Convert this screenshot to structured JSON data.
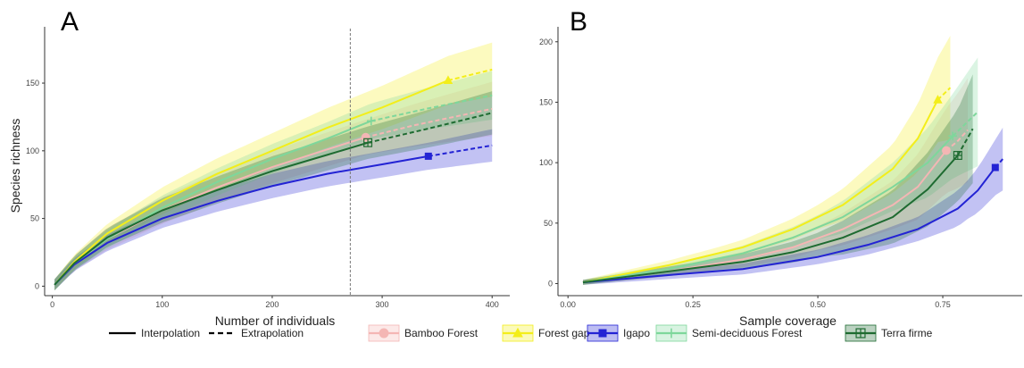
{
  "chart_data": [
    {
      "panel": "A",
      "type": "line",
      "xlabel": "Number of individuals",
      "ylabel": "Species richness",
      "xlim": [
        -7,
        412
      ],
      "ylim": [
        -7,
        185
      ],
      "xticks": [
        0,
        100,
        200,
        300,
        400
      ],
      "yticks": [
        0,
        50,
        100,
        150
      ],
      "xtick_labels": [
        "0",
        "100",
        "200",
        "300",
        "400"
      ],
      "ytick_labels": [
        "0",
        "50",
        "100",
        "150"
      ],
      "reference_line_x": 271,
      "grid": false,
      "series": [
        {
          "name": "Bamboo Forest",
          "color": "#f4b6b4",
          "marker": "circle",
          "observed": [
            285,
            110
          ],
          "interp": [
            [
              2,
              1
            ],
            [
              20,
              17
            ],
            [
              50,
              35
            ],
            [
              100,
              56
            ],
            [
              150,
              73
            ],
            [
              200,
              88
            ],
            [
              250,
              101
            ],
            [
              285,
              110
            ]
          ],
          "extrap": [
            [
              285,
              110
            ],
            [
              330,
              119
            ],
            [
              400,
              131
            ]
          ],
          "band": [
            [
              0,
              4
            ],
            [
              50,
              8
            ],
            [
              100,
              10
            ],
            [
              200,
              12
            ],
            [
              285,
              13
            ],
            [
              400,
              20
            ]
          ]
        },
        {
          "name": "Forest gap",
          "color": "#f3ee1a",
          "marker": "triangle",
          "observed": [
            360,
            152
          ],
          "interp": [
            [
              2,
              1
            ],
            [
              20,
              18
            ],
            [
              50,
              39
            ],
            [
              100,
              63
            ],
            [
              150,
              83
            ],
            [
              200,
              100
            ],
            [
              250,
              117
            ],
            [
              300,
              132
            ],
            [
              360,
              152
            ]
          ],
          "extrap": [
            [
              360,
              152
            ],
            [
              400,
              160
            ]
          ],
          "band": [
            [
              0,
              4
            ],
            [
              50,
              7
            ],
            [
              100,
              10
            ],
            [
              200,
              13
            ],
            [
              300,
              16
            ],
            [
              360,
              18
            ],
            [
              400,
              20
            ]
          ]
        },
        {
          "name": "Igapo",
          "color": "#2323d4",
          "marker": "square",
          "observed": [
            342,
            96
          ],
          "interp": [
            [
              2,
              1
            ],
            [
              20,
              16
            ],
            [
              50,
              32
            ],
            [
              100,
              50
            ],
            [
              150,
              63
            ],
            [
              200,
              74
            ],
            [
              250,
              83
            ],
            [
              300,
              90
            ],
            [
              342,
              96
            ]
          ],
          "extrap": [
            [
              342,
              96
            ],
            [
              400,
              104
            ]
          ],
          "band": [
            [
              0,
              4
            ],
            [
              50,
              6
            ],
            [
              100,
              7
            ],
            [
              200,
              9
            ],
            [
              342,
              10
            ],
            [
              400,
              12
            ]
          ]
        },
        {
          "name": "Semi-deciduous Forest",
          "color": "#7ed79b",
          "marker": "cross",
          "observed": [
            290,
            122
          ],
          "interp": [
            [
              2,
              1
            ],
            [
              20,
              17
            ],
            [
              50,
              35
            ],
            [
              100,
              58
            ],
            [
              150,
              77
            ],
            [
              200,
              94
            ],
            [
              250,
              109
            ],
            [
              290,
              122
            ]
          ],
          "extrap": [
            [
              290,
              122
            ],
            [
              340,
              131
            ],
            [
              400,
              141
            ]
          ],
          "band": [
            [
              0,
              4
            ],
            [
              50,
              7
            ],
            [
              100,
              9
            ],
            [
              200,
              11
            ],
            [
              290,
              13
            ],
            [
              400,
              18
            ]
          ]
        },
        {
          "name": "Terra firme",
          "color": "#1e6b31",
          "marker": "boxed-cross",
          "observed": [
            287,
            106
          ],
          "interp": [
            [
              2,
              1
            ],
            [
              20,
              17
            ],
            [
              50,
              36
            ],
            [
              100,
              56
            ],
            [
              150,
              71
            ],
            [
              200,
              85
            ],
            [
              250,
              97
            ],
            [
              287,
              106
            ]
          ],
          "extrap": [
            [
              287,
              106
            ],
            [
              340,
              116
            ],
            [
              400,
              128
            ]
          ],
          "band": [
            [
              0,
              4
            ],
            [
              50,
              7
            ],
            [
              100,
              9
            ],
            [
              200,
              11
            ],
            [
              287,
              12
            ],
            [
              400,
              16
            ]
          ]
        }
      ]
    },
    {
      "panel": "B",
      "type": "line",
      "xlabel": "Sample coverage",
      "ylabel": "",
      "xlim": [
        -0.02,
        0.9
      ],
      "ylim": [
        -10,
        205
      ],
      "xticks": [
        0.0,
        0.25,
        0.5,
        0.75
      ],
      "yticks": [
        0,
        50,
        100,
        150,
        200
      ],
      "xtick_labels": [
        "0.00",
        "0.25",
        "0.50",
        "0.75"
      ],
      "ytick_labels": [
        "0",
        "50",
        "100",
        "150",
        "200"
      ],
      "grid": false,
      "series": [
        {
          "name": "Bamboo Forest",
          "color": "#f4b6b4",
          "marker": "circle",
          "observed": [
            0.757,
            110
          ],
          "interp": [
            [
              0.03,
              1
            ],
            [
              0.2,
              10
            ],
            [
              0.35,
              20
            ],
            [
              0.45,
              30
            ],
            [
              0.55,
              45
            ],
            [
              0.65,
              65
            ],
            [
              0.7,
              80
            ],
            [
              0.757,
              110
            ]
          ],
          "extrap": [
            [
              0.757,
              110
            ],
            [
              0.78,
              118
            ],
            [
              0.8,
              127
            ]
          ],
          "band": [
            [
              0.03,
              2
            ],
            [
              0.3,
              5
            ],
            [
              0.5,
              10
            ],
            [
              0.65,
              20
            ],
            [
              0.757,
              35
            ],
            [
              0.8,
              43
            ]
          ]
        },
        {
          "name": "Forest gap",
          "color": "#f3ee1a",
          "marker": "triangle",
          "observed": [
            0.74,
            152
          ],
          "interp": [
            [
              0.03,
              1
            ],
            [
              0.2,
              15
            ],
            [
              0.35,
              30
            ],
            [
              0.45,
              45
            ],
            [
              0.55,
              65
            ],
            [
              0.65,
              95
            ],
            [
              0.7,
              120
            ],
            [
              0.74,
              152
            ]
          ],
          "extrap": [
            [
              0.74,
              152
            ],
            [
              0.765,
              162
            ]
          ],
          "band": [
            [
              0.03,
              2
            ],
            [
              0.3,
              5
            ],
            [
              0.5,
              10
            ],
            [
              0.65,
              20
            ],
            [
              0.74,
              35
            ],
            [
              0.765,
              43
            ]
          ]
        },
        {
          "name": "Igapo",
          "color": "#2323d4",
          "marker": "square",
          "observed": [
            0.855,
            96
          ],
          "interp": [
            [
              0.03,
              1
            ],
            [
              0.2,
              7
            ],
            [
              0.35,
              12
            ],
            [
              0.5,
              22
            ],
            [
              0.6,
              32
            ],
            [
              0.7,
              45
            ],
            [
              0.78,
              62
            ],
            [
              0.82,
              77
            ],
            [
              0.855,
              96
            ]
          ],
          "extrap": [
            [
              0.855,
              96
            ],
            [
              0.87,
              103
            ]
          ],
          "band": [
            [
              0.03,
              2
            ],
            [
              0.3,
              4
            ],
            [
              0.5,
              6
            ],
            [
              0.7,
              10
            ],
            [
              0.8,
              16
            ],
            [
              0.855,
              23
            ],
            [
              0.87,
              26
            ]
          ]
        },
        {
          "name": "Semi-deciduous Forest",
          "color": "#7ed79b",
          "marker": "cross",
          "observed": [
            0.77,
            122
          ],
          "interp": [
            [
              0.03,
              1
            ],
            [
              0.2,
              12
            ],
            [
              0.35,
              25
            ],
            [
              0.45,
              38
            ],
            [
              0.55,
              55
            ],
            [
              0.65,
              80
            ],
            [
              0.72,
              100
            ],
            [
              0.77,
              122
            ]
          ],
          "extrap": [
            [
              0.77,
              122
            ],
            [
              0.82,
              142
            ]
          ],
          "band": [
            [
              0.03,
              2
            ],
            [
              0.3,
              5
            ],
            [
              0.5,
              10
            ],
            [
              0.65,
              20
            ],
            [
              0.77,
              35
            ],
            [
              0.82,
              45
            ]
          ]
        },
        {
          "name": "Terra firme",
          "color": "#1e6b31",
          "marker": "boxed-cross",
          "observed": [
            0.78,
            106
          ],
          "interp": [
            [
              0.03,
              1
            ],
            [
              0.2,
              10
            ],
            [
              0.35,
              18
            ],
            [
              0.45,
              26
            ],
            [
              0.55,
              38
            ],
            [
              0.65,
              55
            ],
            [
              0.72,
              78
            ],
            [
              0.78,
              106
            ]
          ],
          "extrap": [
            [
              0.78,
              106
            ],
            [
              0.81,
              128
            ]
          ],
          "band": [
            [
              0.03,
              2
            ],
            [
              0.3,
              5
            ],
            [
              0.5,
              10
            ],
            [
              0.65,
              22
            ],
            [
              0.78,
              38
            ],
            [
              0.81,
              45
            ]
          ]
        }
      ]
    }
  ],
  "legend": {
    "method": [
      {
        "label": "Interpolation",
        "style": "solid"
      },
      {
        "label": "Extrapolation",
        "style": "dashed"
      }
    ],
    "groups": [
      {
        "label": "Bamboo Forest",
        "color": "#f4b6b4",
        "marker": "circle"
      },
      {
        "label": "Forest gap",
        "color": "#f3ee1a",
        "marker": "triangle"
      },
      {
        "label": "Igapo",
        "color": "#2323d4",
        "marker": "square"
      },
      {
        "label": "Semi-deciduous Forest",
        "color": "#7ed79b",
        "marker": "cross"
      },
      {
        "label": "Terra firme",
        "color": "#1e6b31",
        "marker": "boxed-cross"
      }
    ]
  }
}
